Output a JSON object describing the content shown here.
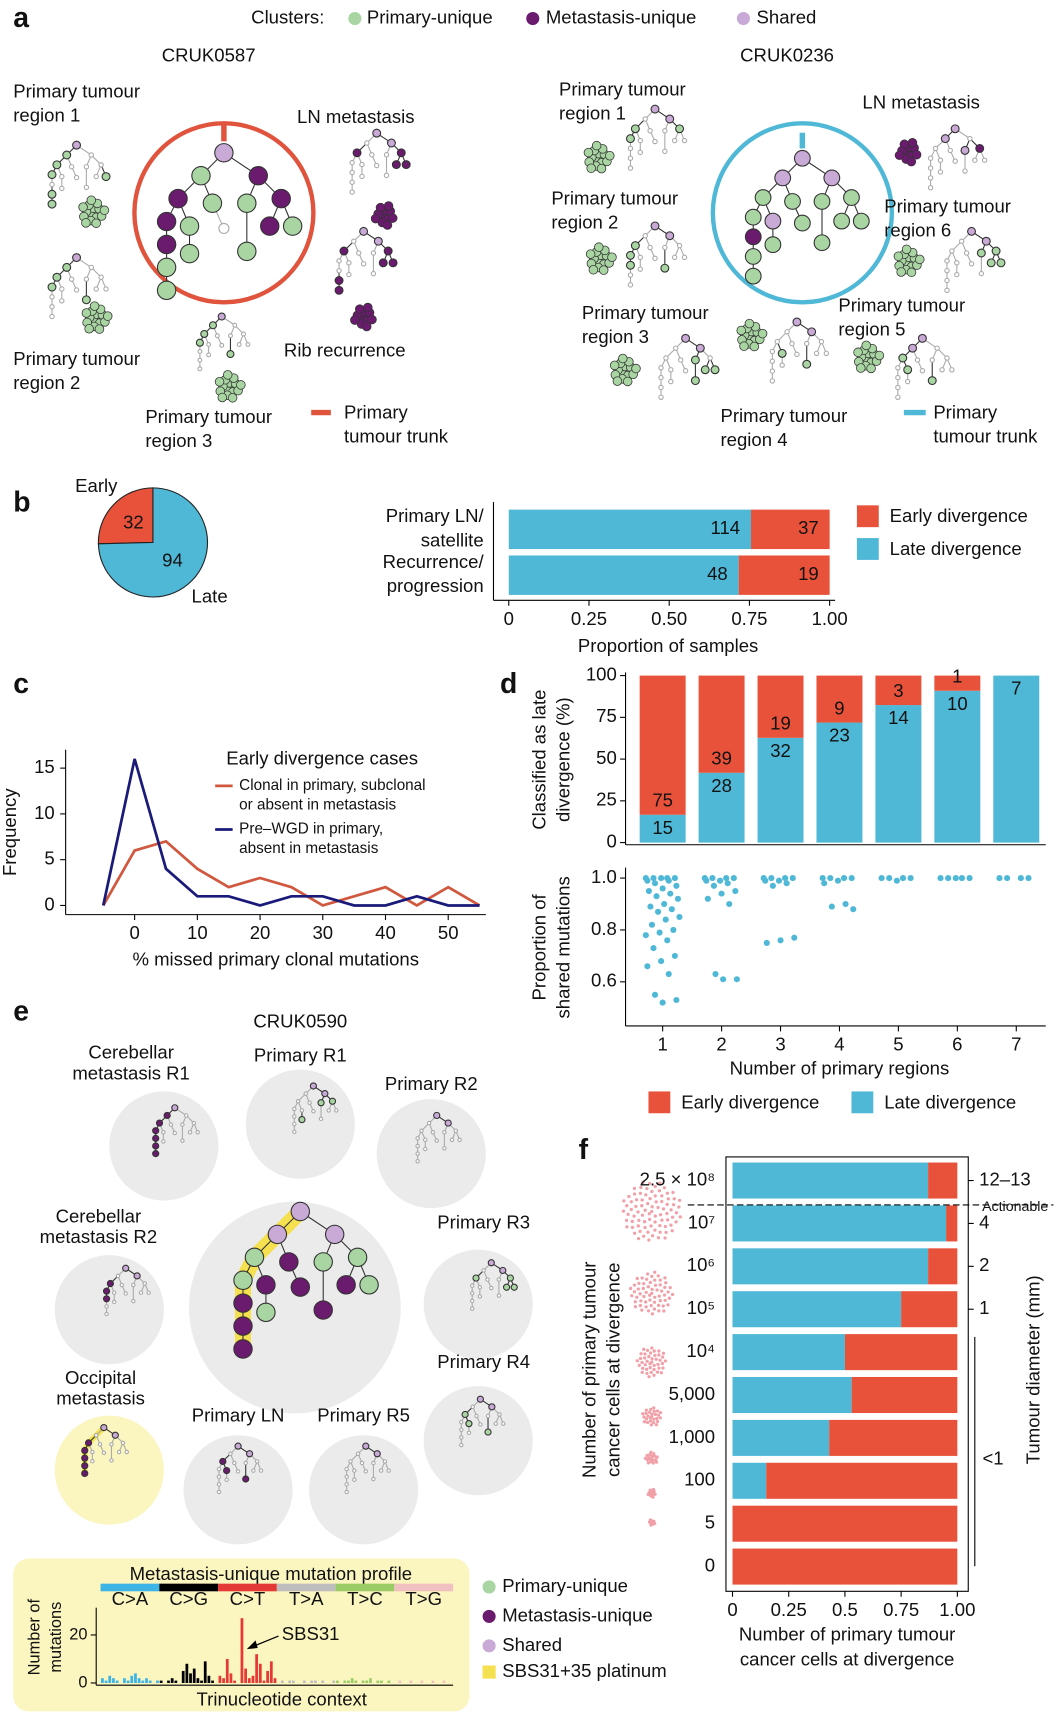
{
  "panels": {
    "letters": [
      "a",
      "b",
      "c",
      "d",
      "e",
      "f"
    ],
    "a": {
      "legend_title": "Clusters:",
      "legend": [
        "Primary-unique",
        "Metastasis-unique",
        "Shared"
      ],
      "left": {
        "title": "CRUK0587",
        "labels": [
          [
            "Primary tumour",
            "region 1"
          ],
          [
            "LN metastasis"
          ],
          [
            "Primary tumour",
            "region 2"
          ],
          [
            "Rib recurrence"
          ],
          [
            "Primary tumour",
            "region 3"
          ],
          [
            "Primary",
            "tumour trunk"
          ]
        ]
      },
      "right": {
        "title": "CRUK0236",
        "labels": [
          [
            "Primary tumour",
            "region 1"
          ],
          [
            "LN metastasis"
          ],
          [
            "Primary tumour",
            "region 2"
          ],
          [
            "Primary tumour",
            "region 6"
          ],
          [
            "Primary tumour",
            "region 3"
          ],
          [
            "Primary tumour",
            "region 5"
          ],
          [
            "Primary tumour",
            "region 4"
          ],
          [
            "Primary",
            "tumour trunk"
          ]
        ]
      }
    },
    "e": {
      "title": "CRUK0590",
      "labels": [
        [
          "Cerebellar",
          "metastasis R1"
        ],
        [
          "Primary R1"
        ],
        [
          "Primary R2"
        ],
        [
          "Cerebellar",
          "metastasis R2"
        ],
        [
          "Primary R3"
        ],
        [
          "Occipital",
          "metastasis"
        ],
        [
          "Primary R4"
        ],
        [
          "Primary LN"
        ],
        [
          "Primary R5"
        ]
      ],
      "legend": [
        "Primary-unique",
        "Metastasis-unique",
        "Shared",
        "SBS31+35 platinum"
      ]
    }
  },
  "chart_data": [
    {
      "type": "pie",
      "categories": [
        "Early",
        "Late"
      ],
      "values": [
        32,
        94
      ],
      "colors": [
        "#e8523a",
        "#4fb8d6"
      ]
    },
    {
      "type": "bar",
      "orientation": "horizontal",
      "normalize": true,
      "categories": [
        [
          "Primary LN/",
          "satellite"
        ],
        [
          "Recurrence/",
          "progression"
        ]
      ],
      "series": [
        {
          "name": "Late divergence",
          "color": "#4fb8d6",
          "values": [
            114,
            48
          ]
        },
        {
          "name": "Early divergence",
          "color": "#e8523a",
          "values": [
            37,
            19
          ]
        }
      ],
      "xlim": [
        0,
        1
      ],
      "xticks": [
        0,
        0.25,
        {
          "value": 0.5,
          "label": "0.50"
        },
        0.75,
        {
          "value": 1,
          "label": "1.00"
        }
      ],
      "xlabel": "Proportion of samples",
      "legend": "right"
    },
    {
      "type": "line",
      "title": "Early divergence cases",
      "x": [
        -5,
        0,
        5,
        10,
        15,
        20,
        25,
        30,
        35,
        40,
        45,
        50,
        55
      ],
      "series": [
        {
          "name": [
            "Clonal in primary, subclonal",
            "or absent in metastasis"
          ],
          "color": "#d0583e",
          "values": [
            0,
            6,
            7,
            4,
            2,
            3,
            2,
            0,
            1,
            2,
            0,
            2,
            0
          ]
        },
        {
          "name": [
            "Pre–WGD in primary,",
            "absent in metastasis"
          ],
          "color": "#1a1a7a",
          "values": [
            0,
            16,
            4,
            1,
            1,
            0,
            1,
            1,
            0,
            0,
            1,
            0,
            0
          ]
        }
      ],
      "xlim": [
        -11,
        56
      ],
      "ylim": [
        -1,
        17
      ],
      "xticks": [
        0,
        10,
        20,
        30,
        40,
        50
      ],
      "yticks": [
        0,
        5,
        10,
        15
      ],
      "xlabel": "% missed primary clonal mutations",
      "ylabel": "Frequency"
    },
    {
      "type": "bar",
      "normalize": true,
      "series": [
        {
          "name": "Late divergence",
          "color": "#4fb8d6",
          "values": [
            15,
            28,
            32,
            23,
            14,
            10,
            7
          ]
        },
        {
          "name": "Early divergence",
          "color": "#e8523a",
          "values": [
            75,
            39,
            19,
            9,
            3,
            1,
            null
          ]
        }
      ],
      "ylim": [
        0,
        100
      ],
      "yticks": [
        0,
        25,
        50,
        75,
        100
      ],
      "ylabel": [
        "Classified as late",
        "divergence (%)"
      ],
      "legend": "bottom"
    },
    {
      "type": "strip",
      "categories": [
        "1",
        "2",
        "3",
        "4",
        "5",
        "6",
        "7"
      ],
      "color": "#4fb8d6",
      "values": [
        [
          1,
          1,
          1,
          1,
          1,
          0.99,
          0.99,
          0.98,
          0.97,
          0.96,
          0.95,
          0.94,
          0.93,
          0.92,
          0.9,
          0.89,
          0.88,
          0.87,
          0.85,
          0.84,
          0.82,
          0.8,
          0.79,
          0.78,
          0.76,
          0.73,
          0.7,
          0.68,
          0.66,
          0.63,
          0.55,
          0.53,
          0.52
        ],
        [
          1,
          1,
          1,
          1,
          0.99,
          0.99,
          0.98,
          0.97,
          0.95,
          0.94,
          0.92,
          0.9,
          0.63,
          0.61,
          0.61
        ],
        [
          1,
          1,
          1,
          1,
          0.99,
          0.99,
          0.98,
          0.97,
          0.77,
          0.76,
          0.75
        ],
        [
          1,
          1,
          1,
          1,
          0.99,
          0.98,
          0.9,
          0.89,
          0.88
        ],
        [
          1,
          1,
          1,
          1,
          0.99
        ],
        [
          1,
          1,
          1,
          1,
          1
        ],
        [
          1,
          1,
          1,
          1
        ]
      ],
      "ylim": [
        0.43,
        1.04
      ],
      "yticks": [
        0.6,
        0.8,
        {
          "value": 1,
          "label": "1.0"
        }
      ],
      "xlabel": "Number of primary regions",
      "ylabel": [
        "Proportion of",
        "shared mutations"
      ]
    },
    {
      "type": "bar",
      "orientation": "horizontal",
      "categories": [
        "2.5 × 10⁸",
        "10⁷",
        "10⁶",
        "10⁵",
        "10⁴",
        "5,000",
        "1,000",
        "100",
        "5",
        "0"
      ],
      "series": [
        {
          "color": "#4fb8d6",
          "values": [
            0.87,
            0.95,
            0.87,
            0.75,
            0.5,
            0.53,
            0.43,
            0.15,
            0,
            0
          ]
        },
        {
          "color": "#e8523a",
          "values": [
            0.13,
            0.05,
            0.13,
            0.25,
            0.5,
            0.47,
            0.57,
            0.85,
            1,
            1
          ]
        }
      ],
      "xlim": [
        0,
        1
      ],
      "xticks": [
        0,
        0.25,
        0.5,
        0.75,
        {
          "value": 1,
          "label": "1.00"
        }
      ],
      "xlabel": [
        "Number of primary tumour",
        "cancer cells at divergence"
      ],
      "ylabel": [
        "Number of primary tumour",
        "cancer cells at divergence"
      ],
      "right_labels": [
        "12–13",
        "4",
        "2",
        "1",
        "<1"
      ],
      "annotation": "Actionable",
      "y2label": "Tumour diameter (mm)"
    },
    {
      "type": "bar",
      "title": "Metastasis-unique mutation profile",
      "groups": [
        "C>A",
        "C>G",
        "C>T",
        "T>A",
        "T>C",
        "T>G"
      ],
      "group_colors": [
        "#3cb4e6",
        "#000000",
        "#e53935",
        "#bdbdbd",
        "#9ccc65",
        "#f1c1c1"
      ],
      "values": [
        2,
        1,
        3,
        2,
        1,
        0,
        2,
        1,
        3,
        4,
        2,
        1,
        2,
        1,
        0,
        1,
        1,
        0,
        1,
        2,
        1,
        0,
        5,
        8,
        4,
        6,
        2,
        1,
        9,
        3,
        1,
        0,
        3,
        2,
        10,
        4,
        1,
        0,
        27,
        6,
        2,
        3,
        12,
        8,
        1,
        5,
        9,
        2,
        0,
        1,
        0,
        1,
        1,
        0,
        0,
        1,
        0,
        1,
        1,
        0,
        1,
        0,
        0,
        1,
        1,
        0,
        1,
        1,
        2,
        1,
        0,
        1,
        1,
        2,
        0,
        1,
        1,
        0,
        1,
        0,
        0,
        1,
        0,
        0,
        1,
        0,
        0,
        1,
        0,
        0,
        1,
        0,
        0,
        1,
        0,
        0
      ],
      "ylim": [
        0,
        30
      ],
      "yticks": [
        0,
        20
      ],
      "xlabel": "Trinucleotide context",
      "ylabel": [
        "Number of",
        "mutations"
      ],
      "annotation": "SBS31"
    }
  ]
}
